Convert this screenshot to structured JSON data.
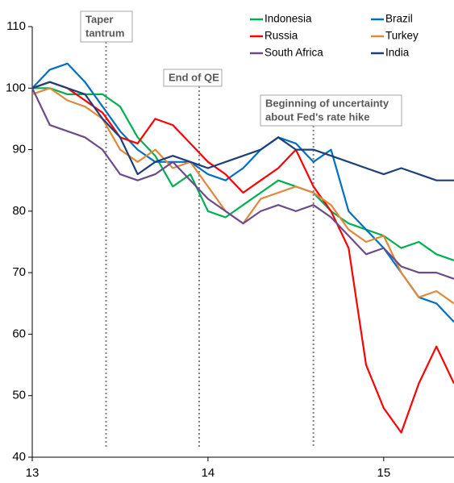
{
  "chart_data": {
    "type": "line",
    "x": [
      13.0,
      13.1,
      13.2,
      13.3,
      13.4,
      13.5,
      13.6,
      13.7,
      13.8,
      13.9,
      14.0,
      14.1,
      14.2,
      14.3,
      14.4,
      14.5,
      14.6,
      14.7,
      14.8,
      14.9,
      15.0,
      15.1,
      15.2,
      15.3,
      15.4
    ],
    "series": [
      {
        "name": "Indonesia",
        "color": "#00b050",
        "values": [
          100,
          100,
          99,
          99,
          99,
          97,
          92,
          89,
          84,
          86,
          80,
          79,
          81,
          83,
          85,
          84,
          83,
          80,
          78,
          77,
          76,
          74,
          75,
          73,
          72
        ]
      },
      {
        "name": "Brazil",
        "color": "#0070c0",
        "values": [
          100,
          103,
          104,
          101,
          97,
          93,
          90,
          88,
          88,
          88,
          86,
          85,
          87,
          90,
          92,
          91,
          88,
          90,
          80,
          77,
          74,
          70,
          66,
          65,
          62
        ]
      },
      {
        "name": "Russia",
        "color": "#ff0000",
        "values": [
          100,
          101,
          100,
          98,
          96,
          92,
          91,
          95,
          94,
          91,
          88,
          86,
          83,
          85,
          87,
          90,
          84,
          80,
          74,
          55,
          48,
          44,
          52,
          58,
          52
        ]
      },
      {
        "name": "Turkey",
        "color": "#e0893a",
        "values": [
          99,
          100,
          98,
          97,
          95,
          90,
          88,
          90,
          87,
          88,
          84,
          80,
          78,
          82,
          83,
          84,
          83,
          81,
          77,
          75,
          76,
          70,
          66,
          67,
          65
        ]
      },
      {
        "name": "South Africa",
        "color": "#6a4c8c",
        "values": [
          100,
          94,
          93,
          92,
          90,
          86,
          85,
          86,
          88,
          85,
          82,
          80,
          78,
          80,
          81,
          80,
          81,
          79,
          76,
          73,
          74,
          71,
          70,
          70,
          69
        ]
      },
      {
        "name": "India",
        "color": "#1f3f7a",
        "values": [
          100,
          101,
          100,
          99,
          95,
          92,
          86,
          88,
          89,
          88,
          87,
          88,
          89,
          90,
          92,
          90,
          90,
          89,
          88,
          87,
          86,
          87,
          86,
          85,
          85
        ]
      }
    ],
    "xlim": [
      13,
      15.4
    ],
    "xticks": [
      13,
      14,
      15
    ],
    "ylim": [
      40,
      110
    ],
    "yticks": [
      40,
      50,
      60,
      70,
      80,
      90,
      100,
      110
    ],
    "grid": false,
    "legend": "top-right",
    "annotations": [
      {
        "x": 13.42,
        "text": [
          "Taper",
          "tantrum"
        ]
      },
      {
        "x": 13.95,
        "text": [
          "End of QE"
        ]
      },
      {
        "x": 14.6,
        "text": [
          "Beginning of uncertainty",
          "about Fed's rate hike"
        ]
      }
    ]
  }
}
